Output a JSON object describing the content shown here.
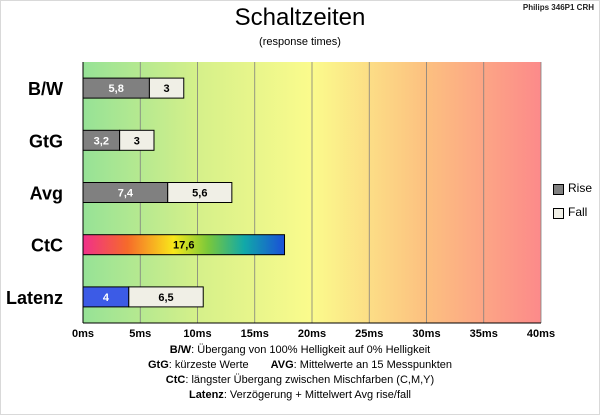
{
  "brand": "Philips 346P1  CRH",
  "chart_data": {
    "type": "bar",
    "orientation": "horizontal",
    "stacked": true,
    "title": "Schaltzeiten",
    "subtitle": "(response times)",
    "categories": [
      "B/W",
      "GtG",
      "Avg",
      "CtC",
      "Latenz"
    ],
    "series": [
      {
        "name": "Rise",
        "values": [
          5.8,
          3.2,
          7.4,
          17.6,
          4
        ],
        "labels": [
          "5,8",
          "3,2",
          "7,4",
          "17,6",
          "4"
        ],
        "color": "#808080"
      },
      {
        "name": "Fall",
        "values": [
          3,
          3,
          5.6,
          null,
          6.5
        ],
        "labels": [
          "3",
          "3",
          "5,6",
          "",
          "6,5"
        ],
        "color": "#f0efe6"
      }
    ],
    "special_bar_colors": {
      "CtC": "rainbow",
      "Latenz_rise": "#3c5be6"
    },
    "xlim": [
      0,
      40
    ],
    "xticks": [
      0,
      5,
      10,
      15,
      20,
      25,
      30,
      35,
      40
    ],
    "xtick_labels": [
      "0ms",
      "5ms",
      "10ms",
      "15ms",
      "20ms",
      "25ms",
      "30ms",
      "35ms",
      "40ms"
    ],
    "grid": true,
    "background": "gradient green-yellow-red",
    "legend_position": "right"
  },
  "legend": [
    {
      "name": "Rise",
      "color": "#808080"
    },
    {
      "name": "Fall",
      "color": "#f0efe6"
    }
  ],
  "notes": [
    {
      "key": "B/W",
      "text": ":  Übergang von 100% Helligkeit auf 0% Helligkeit"
    },
    {
      "key": "GtG",
      "text": ": kürzeste  Werte",
      "key2": "AVG",
      "text2": ": Mittelwerte  an 15 Messpunkten"
    },
    {
      "key": "CtC",
      "text": ": längster Übergang  zwischen Mischfarben (C,M,Y)"
    },
    {
      "key": "Latenz",
      "text": ": Verzögerung  + Mittelwert Avg rise/fall"
    }
  ]
}
